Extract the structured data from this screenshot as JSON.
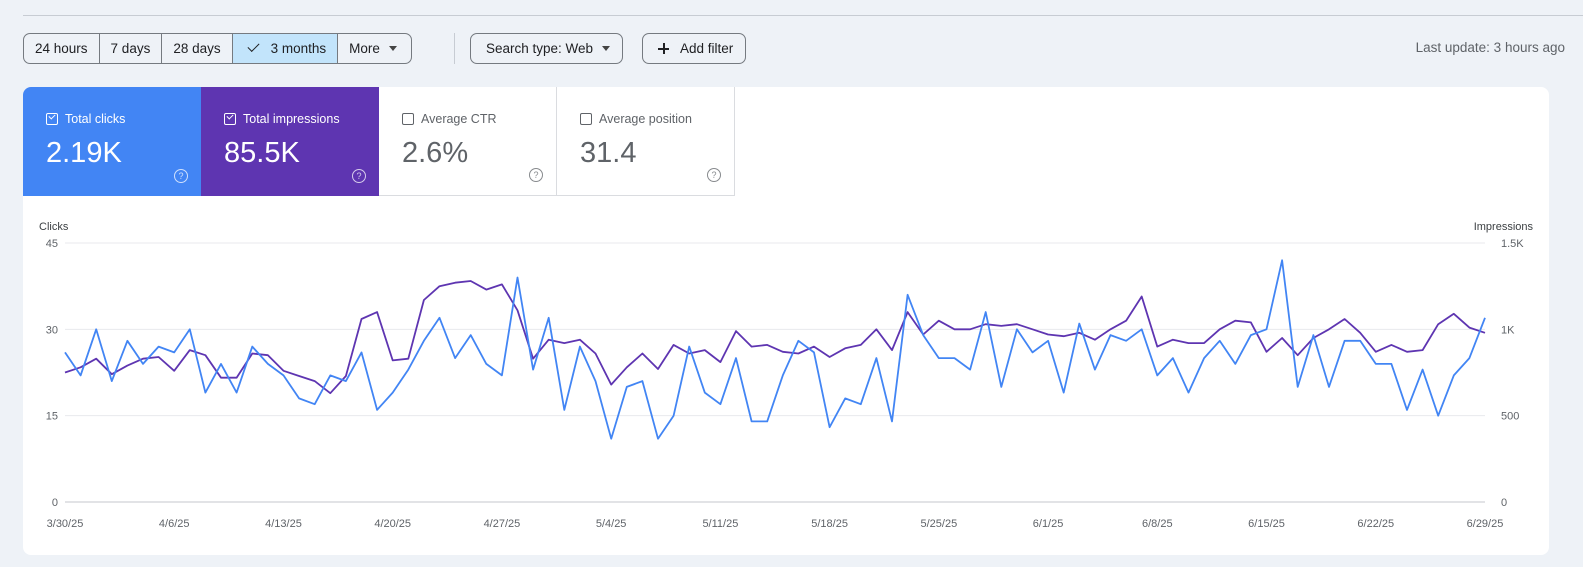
{
  "toolbar": {
    "ranges": [
      "24 hours",
      "7 days",
      "28 days",
      "3 months"
    ],
    "active_range": "3 months",
    "more_label": "More",
    "search_type_label": "Search type: Web",
    "add_filter_label": "Add filter",
    "last_update": "Last update: 3 hours ago"
  },
  "metrics": {
    "clicks": {
      "label": "Total clicks",
      "value": "2.19K",
      "checked": true,
      "color": "#4285f4"
    },
    "impressions": {
      "label": "Total impressions",
      "value": "85.5K",
      "checked": true,
      "color": "#5e35b1"
    },
    "ctr": {
      "label": "Average CTR",
      "value": "2.6%",
      "checked": false
    },
    "position": {
      "label": "Average position",
      "value": "31.4",
      "checked": false
    }
  },
  "chart_data": {
    "type": "line",
    "y_left_label": "Clicks",
    "y_right_label": "Impressions",
    "y_left_ticks": [
      "0",
      "15",
      "30",
      "45"
    ],
    "y_right_ticks": [
      "0",
      "500",
      "1K",
      "1.5K"
    ],
    "y_left_range": [
      0,
      45
    ],
    "y_right_range": [
      0,
      1500
    ],
    "x_tick_labels": [
      "3/30/25",
      "4/6/25",
      "4/13/25",
      "4/20/25",
      "4/27/25",
      "5/4/25",
      "5/11/25",
      "5/18/25",
      "5/25/25",
      "6/1/25",
      "6/8/25",
      "6/15/25",
      "6/22/25",
      "6/29/25"
    ],
    "grid": true,
    "series": [
      {
        "name": "Clicks",
        "axis": "left",
        "color": "#4285f4",
        "values": [
          26,
          22,
          30,
          21,
          28,
          24,
          27,
          26,
          30,
          19,
          24,
          19,
          27,
          24,
          22,
          18,
          17,
          22,
          21,
          26,
          16,
          19,
          23,
          28,
          32,
          25,
          29,
          24,
          22,
          39,
          23,
          32,
          16,
          27,
          21,
          11,
          20,
          21,
          11,
          15,
          27,
          19,
          17,
          25,
          14,
          14,
          22,
          28,
          26,
          13,
          18,
          17,
          25,
          14,
          36,
          29,
          25,
          25,
          23,
          33,
          20,
          30,
          26,
          28,
          19,
          31,
          23,
          29,
          28,
          30,
          22,
          25,
          19,
          25,
          28,
          24,
          29,
          30,
          42,
          20,
          29,
          20,
          28,
          28,
          24,
          24,
          16,
          23,
          15,
          22,
          25,
          32
        ]
      },
      {
        "name": "Impressions",
        "axis": "right",
        "color": "#5e35b1",
        "values": [
          750,
          780,
          830,
          740,
          790,
          830,
          840,
          760,
          880,
          850,
          720,
          720,
          860,
          850,
          760,
          730,
          700,
          630,
          730,
          1060,
          1100,
          820,
          830,
          1170,
          1250,
          1270,
          1280,
          1230,
          1260,
          1110,
          830,
          940,
          920,
          940,
          860,
          680,
          780,
          860,
          770,
          910,
          860,
          880,
          810,
          990,
          900,
          910,
          870,
          860,
          900,
          840,
          890,
          910,
          1000,
          880,
          1100,
          970,
          1050,
          1000,
          1000,
          1030,
          1020,
          1030,
          1000,
          970,
          960,
          980,
          940,
          1000,
          1050,
          1190,
          900,
          940,
          920,
          920,
          1000,
          1050,
          1040,
          870,
          950,
          850,
          950,
          1000,
          1060,
          980,
          870,
          910,
          870,
          880,
          1030,
          1090,
          1010,
          980
        ]
      }
    ]
  }
}
